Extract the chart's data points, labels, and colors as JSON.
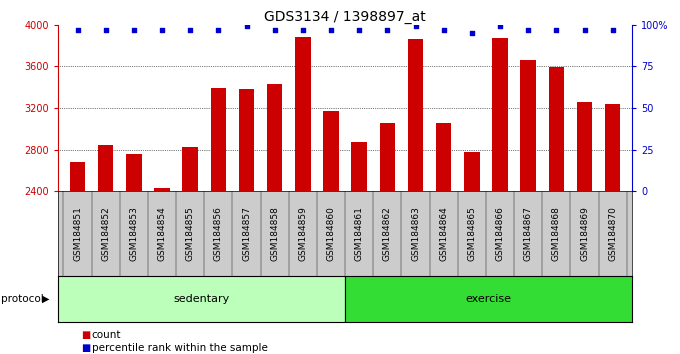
{
  "title": "GDS3134 / 1398897_at",
  "categories": [
    "GSM184851",
    "GSM184852",
    "GSM184853",
    "GSM184854",
    "GSM184855",
    "GSM184856",
    "GSM184857",
    "GSM184858",
    "GSM184859",
    "GSM184860",
    "GSM184861",
    "GSM184862",
    "GSM184863",
    "GSM184864",
    "GSM184865",
    "GSM184866",
    "GSM184867",
    "GSM184868",
    "GSM184869",
    "GSM184870"
  ],
  "bar_values": [
    2680,
    2840,
    2760,
    2430,
    2820,
    3390,
    3380,
    3430,
    3880,
    3170,
    2870,
    3060,
    3860,
    3060,
    2780,
    3870,
    3660,
    3590,
    3260,
    3240
  ],
  "percentile_values": [
    97,
    97,
    97,
    97,
    97,
    97,
    99,
    97,
    97,
    97,
    97,
    97,
    99,
    97,
    95,
    99,
    97,
    97,
    97,
    97
  ],
  "bar_color": "#cc0000",
  "percentile_color": "#0000cc",
  "ylim_left": [
    2400,
    4000
  ],
  "ylim_right": [
    0,
    100
  ],
  "yticks_left": [
    2400,
    2800,
    3200,
    3600,
    4000
  ],
  "yticks_right": [
    0,
    25,
    50,
    75,
    100
  ],
  "yticklabels_right": [
    "0",
    "25",
    "50",
    "75",
    "100%"
  ],
  "groups": [
    {
      "label": "sedentary",
      "start": 0,
      "end": 9,
      "color": "#bbffbb"
    },
    {
      "label": "exercise",
      "start": 10,
      "end": 19,
      "color": "#33dd33"
    }
  ],
  "group_row_label": "protocol",
  "legend_items": [
    {
      "label": "count",
      "color": "#cc0000"
    },
    {
      "label": "percentile rank within the sample",
      "color": "#0000cc"
    }
  ],
  "ticklabel_bg": "#cccccc",
  "plot_bg": "#ffffff",
  "title_fontsize": 10,
  "tick_fontsize": 7,
  "axis_fontsize": 7,
  "bar_width": 0.55
}
